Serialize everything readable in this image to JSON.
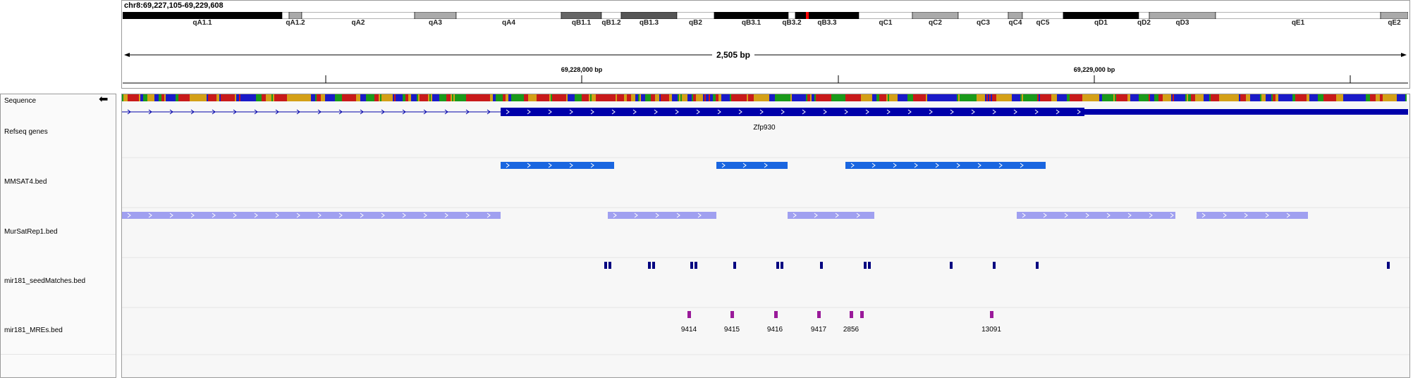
{
  "locus": "chr8:69,227,105-69,229,608",
  "span_label": "2,505 bp",
  "ruler_ticks": [
    "69,228,000 bp",
    "69,229,000 bp"
  ],
  "cytobands": [
    {
      "name": "qA1.1",
      "color": "#000000"
    },
    {
      "name": "",
      "color": "#ffffff"
    },
    {
      "name": "qA1.2",
      "color": "#aaaaaa"
    },
    {
      "name": "qA2",
      "color": "#ffffff"
    },
    {
      "name": "qA3",
      "color": "#aaaaaa"
    },
    {
      "name": "qA4",
      "color": "#ffffff"
    },
    {
      "name": "qB1.1",
      "color": "#666666"
    },
    {
      "name": "qB1.2",
      "color": "#ffffff"
    },
    {
      "name": "qB1.3",
      "color": "#555555"
    },
    {
      "name": "qB2",
      "color": "#ffffff"
    },
    {
      "name": "qB3.1",
      "color": "#000000"
    },
    {
      "name": "qB3.2",
      "color": "#ffffff"
    },
    {
      "name": "qB3.3",
      "color": "#000000"
    },
    {
      "name": "qC1",
      "color": "#ffffff"
    },
    {
      "name": "qC2",
      "color": "#aaaaaa"
    },
    {
      "name": "qC3",
      "color": "#ffffff"
    },
    {
      "name": "qC4",
      "color": "#aaaaaa"
    },
    {
      "name": "qC5",
      "color": "#ffffff"
    },
    {
      "name": "qD1",
      "color": "#000000"
    },
    {
      "name": "qD2",
      "color": "#ffffff"
    },
    {
      "name": "qD3",
      "color": "#aaaaaa"
    },
    {
      "name": "qE1",
      "color": "#ffffff"
    },
    {
      "name": "qE2",
      "color": "#aaaaaa"
    }
  ],
  "tracks": [
    {
      "name": "Sequence"
    },
    {
      "name": "Refseq genes"
    },
    {
      "name": "MMSAT4.bed"
    },
    {
      "name": "MurSatRep1.bed"
    },
    {
      "name": "mir181_seedMatches.bed"
    },
    {
      "name": "mir181_MREs.bed"
    }
  ],
  "refseq": {
    "gene": "Zfp930",
    "color": "#0000aa"
  },
  "mmsat4": {
    "color": "#1a66e0"
  },
  "mursatrep1": {
    "color": "#a0a0f0"
  },
  "seed_matches": {
    "color": "#000080"
  },
  "mres": {
    "color": "#9a1a9a",
    "labels": [
      "9414",
      "9415",
      "9416",
      "9417",
      "2856",
      "13091"
    ]
  }
}
